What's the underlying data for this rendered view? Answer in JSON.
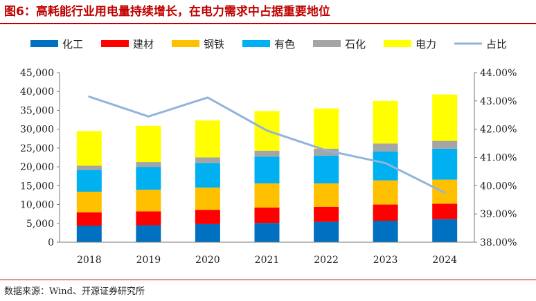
{
  "title": "图6：高耗能行业用电量持续增长，在电力需求中占据重要地位",
  "source": "数据来源：Wind、开源证券研究所",
  "chart_data": {
    "type": "bar",
    "stacked": true,
    "categories": [
      "2018",
      "2019",
      "2020",
      "2021",
      "2022",
      "2023",
      "2024"
    ],
    "series": [
      {
        "name": "化工",
        "color": "#0070c0",
        "values": [
          4400,
          4500,
          4800,
          5100,
          5400,
          5700,
          6100
        ]
      },
      {
        "name": "建材",
        "color": "#ff0000",
        "values": [
          3500,
          3700,
          3800,
          4100,
          4000,
          4300,
          4100
        ]
      },
      {
        "name": "钢铁",
        "color": "#ffc000",
        "values": [
          5500,
          5700,
          5900,
          6400,
          6200,
          6400,
          6400
        ]
      },
      {
        "name": "有色",
        "color": "#00b0f0",
        "values": [
          5700,
          6100,
          6500,
          7100,
          7400,
          7700,
          8200
        ]
      },
      {
        "name": "石化",
        "color": "#a5a5a5",
        "values": [
          1200,
          1300,
          1500,
          1600,
          1800,
          2100,
          2100
        ]
      },
      {
        "name": "电力",
        "color": "#ffff00",
        "values": [
          9200,
          9600,
          9800,
          10500,
          10700,
          11300,
          12300
        ]
      }
    ],
    "line_series": {
      "name": "占比",
      "color": "#92b4dc",
      "axis": "right",
      "values": [
        43.15,
        42.45,
        43.12,
        41.95,
        41.25,
        40.8,
        39.75
      ]
    },
    "ylim": [
      0,
      45000
    ],
    "yticks": [
      "0",
      "5,000",
      "10,000",
      "15,000",
      "20,000",
      "25,000",
      "30,000",
      "35,000",
      "40,000",
      "45,000"
    ],
    "y2lim": [
      38,
      44
    ],
    "y2ticks": [
      "38.00%",
      "39.00%",
      "40.00%",
      "41.00%",
      "42.00%",
      "43.00%",
      "44.00%"
    ],
    "legend_position": "top"
  }
}
